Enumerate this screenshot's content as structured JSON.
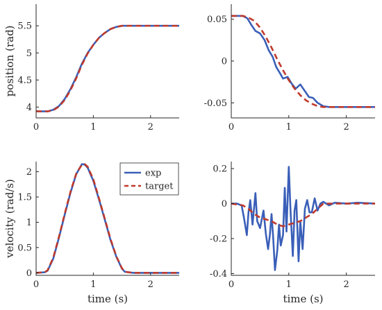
{
  "colors": {
    "exp": "#3a5fb8",
    "target": "#c0392b",
    "axes": "#262626"
  },
  "chart_data": [
    {
      "type": "line",
      "panel": "top-left",
      "xlabel": "",
      "ylabel": "position (rad)",
      "xlim": [
        0,
        2.5
      ],
      "ylim": [
        3.8,
        5.9
      ],
      "xticks": [
        {
          "v": 0,
          "label": "0"
        },
        {
          "v": 1,
          "label": "1"
        },
        {
          "v": 2,
          "label": "2"
        }
      ],
      "yticks": [
        {
          "v": 4,
          "label": "4"
        },
        {
          "v": 4.5,
          "label": "4.5"
        },
        {
          "v": 5,
          "label": "5"
        },
        {
          "v": 5.5,
          "label": "5.5"
        }
      ],
      "series": [
        {
          "key": "exp",
          "x": [
            0,
            0.2,
            0.3,
            0.4,
            0.5,
            0.6,
            0.7,
            0.8,
            0.9,
            1.0,
            1.1,
            1.2,
            1.3,
            1.4,
            1.5,
            1.6,
            2.0,
            2.5
          ],
          "y": [
            3.92,
            3.92,
            3.95,
            4.02,
            4.15,
            4.33,
            4.55,
            4.8,
            5.0,
            5.15,
            5.28,
            5.37,
            5.44,
            5.48,
            5.5,
            5.5,
            5.5,
            5.5
          ]
        },
        {
          "key": "target",
          "x": [
            0,
            0.2,
            0.3,
            0.4,
            0.5,
            0.6,
            0.7,
            0.8,
            0.9,
            1.0,
            1.1,
            1.2,
            1.3,
            1.4,
            1.5,
            1.6,
            2.0,
            2.5
          ],
          "y": [
            3.92,
            3.92,
            3.94,
            4.01,
            4.13,
            4.31,
            4.53,
            4.78,
            4.99,
            5.15,
            5.28,
            5.37,
            5.44,
            5.48,
            5.5,
            5.5,
            5.5,
            5.5
          ]
        }
      ]
    },
    {
      "type": "line",
      "panel": "top-right",
      "xlabel": "",
      "ylabel": "",
      "xlim": [
        0,
        2.5
      ],
      "ylim": [
        -0.068,
        0.068
      ],
      "xticks": [
        {
          "v": 0,
          "label": "0"
        },
        {
          "v": 1,
          "label": "1"
        },
        {
          "v": 2,
          "label": "2"
        }
      ],
      "yticks": [
        {
          "v": -0.05,
          "label": "-0.05"
        },
        {
          "v": 0,
          "label": "0"
        },
        {
          "v": 0.05,
          "label": "0.05"
        }
      ],
      "series": [
        {
          "key": "exp",
          "x": [
            0,
            0.2,
            0.28,
            0.35,
            0.42,
            0.5,
            0.58,
            0.65,
            0.72,
            0.78,
            0.85,
            0.9,
            0.98,
            1.05,
            1.12,
            1.2,
            1.28,
            1.35,
            1.42,
            1.5,
            1.6,
            1.7,
            2.0,
            2.5
          ],
          "y": [
            0.054,
            0.054,
            0.051,
            0.043,
            0.036,
            0.033,
            0.025,
            0.013,
            0.005,
            -0.007,
            -0.015,
            -0.021,
            -0.019,
            -0.027,
            -0.033,
            -0.028,
            -0.036,
            -0.043,
            -0.044,
            -0.05,
            -0.054,
            -0.055,
            -0.055,
            -0.055
          ]
        },
        {
          "key": "target",
          "x": [
            0,
            0.2,
            0.3,
            0.4,
            0.5,
            0.6,
            0.7,
            0.8,
            0.9,
            1.0,
            1.1,
            1.2,
            1.3,
            1.4,
            1.5,
            1.6,
            2.0,
            2.5
          ],
          "y": [
            0.054,
            0.054,
            0.052,
            0.048,
            0.04,
            0.029,
            0.016,
            0.002,
            -0.011,
            -0.023,
            -0.033,
            -0.041,
            -0.047,
            -0.051,
            -0.054,
            -0.055,
            -0.055,
            -0.055
          ]
        }
      ]
    },
    {
      "type": "line",
      "panel": "bottom-left",
      "xlabel": "time (s)",
      "ylabel": "velocity (rad/s)",
      "xlim": [
        0,
        2.5
      ],
      "ylim": [
        -0.05,
        2.2
      ],
      "xticks": [
        {
          "v": 0,
          "label": "0"
        },
        {
          "v": 1,
          "label": "1"
        },
        {
          "v": 2,
          "label": "2"
        }
      ],
      "yticks": [
        {
          "v": 0,
          "label": "0"
        },
        {
          "v": 0.5,
          "label": "0.5"
        },
        {
          "v": 1,
          "label": "1"
        },
        {
          "v": 1.5,
          "label": "1.5"
        },
        {
          "v": 2,
          "label": "2"
        }
      ],
      "legend": {
        "placement": "top-right",
        "entries": [
          {
            "key": "exp",
            "label": "exp"
          },
          {
            "key": "target",
            "label": "target"
          }
        ]
      },
      "series": [
        {
          "key": "exp",
          "name": "exp",
          "x": [
            0,
            0.15,
            0.2,
            0.3,
            0.4,
            0.5,
            0.6,
            0.7,
            0.8,
            0.85,
            0.9,
            1.0,
            1.1,
            1.2,
            1.3,
            1.4,
            1.5,
            1.55,
            1.7,
            2.5
          ],
          "y": [
            0,
            0.01,
            0.04,
            0.28,
            0.7,
            1.15,
            1.58,
            1.95,
            2.15,
            2.14,
            2.08,
            1.82,
            1.45,
            1.05,
            0.65,
            0.32,
            0.08,
            0.02,
            0,
            0
          ]
        },
        {
          "key": "target",
          "name": "target",
          "x": [
            0,
            0.15,
            0.2,
            0.3,
            0.4,
            0.5,
            0.6,
            0.7,
            0.8,
            0.85,
            0.9,
            1.0,
            1.1,
            1.2,
            1.3,
            1.4,
            1.5,
            1.55,
            1.7,
            2.5
          ],
          "y": [
            0,
            0.01,
            0.05,
            0.3,
            0.72,
            1.17,
            1.6,
            1.96,
            2.14,
            2.15,
            2.1,
            1.85,
            1.47,
            1.07,
            0.67,
            0.33,
            0.09,
            0.02,
            0,
            0
          ]
        }
      ]
    },
    {
      "type": "line",
      "panel": "bottom-right",
      "xlabel": "time (s)",
      "ylabel": "",
      "xlim": [
        0,
        2.5
      ],
      "ylim": [
        -0.41,
        0.24
      ],
      "xticks": [
        {
          "v": 0,
          "label": "0"
        },
        {
          "v": 1,
          "label": "1"
        },
        {
          "v": 2,
          "label": "2"
        }
      ],
      "yticks": [
        {
          "v": -0.4,
          "label": "-0.4"
        },
        {
          "v": -0.2,
          "label": "-0.2"
        },
        {
          "v": 0,
          "label": "0"
        },
        {
          "v": 0.2,
          "label": "0.2"
        }
      ],
      "series": [
        {
          "key": "exp",
          "x": [
            0,
            0.1,
            0.18,
            0.22,
            0.27,
            0.3,
            0.33,
            0.37,
            0.42,
            0.45,
            0.5,
            0.53,
            0.56,
            0.6,
            0.64,
            0.67,
            0.7,
            0.73,
            0.76,
            0.8,
            0.83,
            0.86,
            0.9,
            0.93,
            0.96,
            1.0,
            1.03,
            1.07,
            1.1,
            1.13,
            1.17,
            1.2,
            1.24,
            1.28,
            1.32,
            1.36,
            1.4,
            1.45,
            1.5,
            1.55,
            1.6,
            1.7,
            1.8,
            2.0,
            2.2,
            2.5
          ],
          "y": [
            0,
            0,
            -0.01,
            -0.08,
            -0.18,
            -0.05,
            0.02,
            -0.12,
            0.06,
            -0.1,
            -0.14,
            -0.09,
            -0.04,
            -0.17,
            -0.26,
            -0.18,
            -0.06,
            -0.2,
            -0.38,
            -0.27,
            -0.12,
            -0.24,
            -0.18,
            0.09,
            -0.16,
            0.21,
            -0.04,
            -0.3,
            -0.04,
            0.02,
            -0.33,
            -0.1,
            -0.26,
            -0.03,
            0.02,
            -0.05,
            -0.05,
            0.03,
            -0.04,
            0.0,
            0.01,
            -0.01,
            0.005,
            0.0,
            0.005,
            0.0
          ]
        },
        {
          "key": "target",
          "x": [
            0,
            0.2,
            0.3,
            0.4,
            0.5,
            0.6,
            0.7,
            0.8,
            0.9,
            1.0,
            1.1,
            1.2,
            1.3,
            1.4,
            1.5,
            1.6,
            2.0,
            2.5
          ],
          "y": [
            0,
            -0.01,
            -0.03,
            -0.06,
            -0.08,
            -0.09,
            -0.1,
            -0.12,
            -0.13,
            -0.12,
            -0.11,
            -0.1,
            -0.08,
            -0.06,
            -0.03,
            0,
            0,
            0
          ]
        }
      ]
    }
  ]
}
